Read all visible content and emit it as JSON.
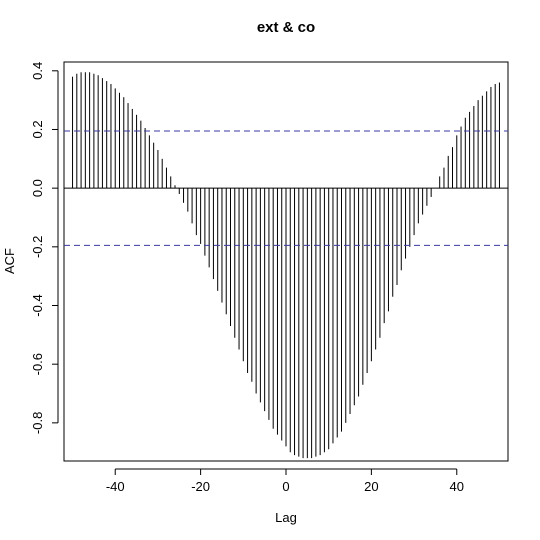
{
  "chart_data": {
    "type": "bar",
    "title": "ext & co",
    "xlabel": "Lag",
    "ylabel": "ACF",
    "xlim": [
      -52,
      52
    ],
    "ylim": [
      -0.93,
      0.43
    ],
    "x_ticks": [
      -40,
      -20,
      0,
      20,
      40
    ],
    "x_tick_labels": [
      "-40",
      "-20",
      "0",
      "20",
      "40"
    ],
    "y_ticks": [
      -0.8,
      -0.6,
      -0.4,
      -0.2,
      0.0,
      0.2,
      0.4
    ],
    "y_tick_labels": [
      "-0.8",
      "-0.6",
      "-0.4",
      "-0.2",
      "0.0",
      "0.2",
      "0.4"
    ],
    "confidence_bounds": [
      0.195,
      -0.195
    ],
    "lags": [
      -50,
      -49,
      -48,
      -47,
      -46,
      -45,
      -44,
      -43,
      -42,
      -41,
      -40,
      -39,
      -38,
      -37,
      -36,
      -35,
      -34,
      -33,
      -32,
      -31,
      -30,
      -29,
      -28,
      -27,
      -26,
      -25,
      -24,
      -23,
      -22,
      -21,
      -20,
      -19,
      -18,
      -17,
      -16,
      -15,
      -14,
      -13,
      -12,
      -11,
      -10,
      -9,
      -8,
      -7,
      -6,
      -5,
      -4,
      -3,
      -2,
      -1,
      0,
      1,
      2,
      3,
      4,
      5,
      6,
      7,
      8,
      9,
      10,
      11,
      12,
      13,
      14,
      15,
      16,
      17,
      18,
      19,
      20,
      21,
      22,
      23,
      24,
      25,
      26,
      27,
      28,
      29,
      30,
      31,
      32,
      33,
      34,
      35,
      36,
      37,
      38,
      39,
      40,
      41,
      42,
      43,
      44,
      45,
      46,
      47,
      48,
      49,
      50
    ],
    "values": [
      0.38,
      0.39,
      0.395,
      0.395,
      0.395,
      0.39,
      0.385,
      0.375,
      0.365,
      0.355,
      0.34,
      0.325,
      0.31,
      0.29,
      0.27,
      0.25,
      0.23,
      0.205,
      0.18,
      0.155,
      0.13,
      0.1,
      0.07,
      0.04,
      0.01,
      -0.02,
      -0.05,
      -0.08,
      -0.12,
      -0.16,
      -0.19,
      -0.23,
      -0.27,
      -0.31,
      -0.35,
      -0.39,
      -0.43,
      -0.47,
      -0.51,
      -0.55,
      -0.59,
      -0.63,
      -0.66,
      -0.7,
      -0.73,
      -0.76,
      -0.79,
      -0.82,
      -0.84,
      -0.86,
      -0.88,
      -0.9,
      -0.91,
      -0.915,
      -0.92,
      -0.92,
      -0.92,
      -0.915,
      -0.91,
      -0.9,
      -0.89,
      -0.87,
      -0.85,
      -0.83,
      -0.8,
      -0.77,
      -0.74,
      -0.71,
      -0.67,
      -0.63,
      -0.59,
      -0.55,
      -0.51,
      -0.46,
      -0.42,
      -0.37,
      -0.33,
      -0.28,
      -0.24,
      -0.2,
      -0.16,
      -0.12,
      -0.09,
      -0.06,
      -0.03,
      0.0,
      0.04,
      0.07,
      0.11,
      0.14,
      0.18,
      0.21,
      0.24,
      0.26,
      0.28,
      0.3,
      0.315,
      0.33,
      0.345,
      0.355,
      0.36
    ]
  }
}
